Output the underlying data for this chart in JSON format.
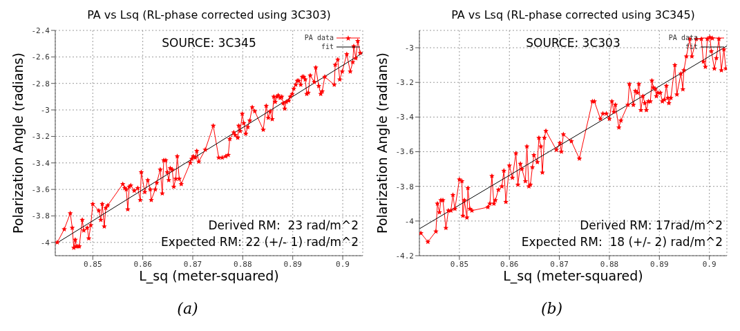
{
  "chart_data": [
    {
      "type": "line",
      "title": "PA vs Lsq (RL-phase corrected using 3C303)",
      "xlabel": "L_sq (meter-squared)",
      "ylabel": "Polarization Angle (radians)",
      "xlim": [
        0.8425,
        0.904
      ],
      "ylim": [
        -4.1,
        -2.4
      ],
      "xticks": [
        0.85,
        0.86,
        0.87,
        0.88,
        0.89,
        0.9
      ],
      "yticks": [
        -4,
        -3.8,
        -3.6,
        -3.4,
        -3.2,
        -3,
        -2.8,
        -2.6,
        -2.4
      ],
      "grid": true,
      "legend": "top right",
      "annotations": [
        "SOURCE: 3C345",
        "Derived RM:  23 rad/m^2",
        "Expected RM: 22 (+/- 1) rad/m^2",
        "(a)"
      ],
      "series": [
        {
          "name": "PA data",
          "color": "#ff0000",
          "marker": "star",
          "x": [
            0.8429,
            0.8443,
            0.8455,
            0.8459,
            0.8462,
            0.8465,
            0.8467,
            0.847,
            0.8473,
            0.8479,
            0.8482,
            0.8489,
            0.8492,
            0.8496,
            0.85,
            0.8512,
            0.8516,
            0.8519,
            0.8523,
            0.8526,
            0.853,
            0.856,
            0.8564,
            0.8567,
            0.857,
            0.8573,
            0.8576,
            0.8583,
            0.859,
            0.8595,
            0.8597,
            0.8604,
            0.861,
            0.8615,
            0.8617,
            0.8625,
            0.8628,
            0.8635,
            0.8639,
            0.8642,
            0.8646,
            0.8649,
            0.8652,
            0.8655,
            0.8659,
            0.8662,
            0.8666,
            0.8669,
            0.8673,
            0.8677,
            0.8695,
            0.8698,
            0.8701,
            0.8705,
            0.8708,
            0.8712,
            0.8725,
            0.8741,
            0.8752,
            0.8759,
            0.8766,
            0.8771,
            0.8774,
            0.8782,
            0.8785,
            0.879,
            0.8792,
            0.8795,
            0.8799,
            0.8802,
            0.8806,
            0.881,
            0.8814,
            0.8819,
            0.8824,
            0.8841,
            0.8847,
            0.8851,
            0.8855,
            0.8859,
            0.8862,
            0.8865,
            0.8868,
            0.8871,
            0.8875,
            0.8878,
            0.8881,
            0.8884,
            0.8887,
            0.8892,
            0.8895,
            0.8899,
            0.8902,
            0.8906,
            0.8909,
            0.8912,
            0.8916,
            0.8919,
            0.8922,
            0.8925,
            0.8928,
            0.8931,
            0.8935,
            0.8943,
            0.8946,
            0.8952,
            0.8956,
            0.8959,
            0.8964,
            0.8983,
            0.8985,
            0.899,
            0.8994,
            0.8999,
            0.9008,
            0.9015,
            0.902,
            0.9022,
            0.9026,
            0.903,
            0.9035
          ],
          "values": [
            -4.0,
            -3.9,
            -3.78,
            -3.89,
            -4.04,
            -3.98,
            -4.03,
            -4.03,
            -4.03,
            -3.83,
            -3.91,
            -3.89,
            -3.97,
            -3.87,
            -3.71,
            -3.76,
            -3.83,
            -3.71,
            -3.88,
            -3.74,
            -3.72,
            -3.56,
            -3.59,
            -3.6,
            -3.75,
            -3.58,
            -3.57,
            -3.61,
            -3.59,
            -3.68,
            -3.47,
            -3.62,
            -3.53,
            -3.6,
            -3.68,
            -3.6,
            -3.55,
            -3.45,
            -3.63,
            -3.38,
            -3.38,
            -3.47,
            -3.53,
            -3.44,
            -3.45,
            -3.58,
            -3.52,
            -3.35,
            -3.52,
            -3.56,
            -3.4,
            -3.37,
            -3.35,
            -3.36,
            -3.31,
            -3.39,
            -3.3,
            -3.12,
            -3.36,
            -3.36,
            -3.35,
            -3.34,
            -3.22,
            -3.17,
            -3.19,
            -3.21,
            -3.12,
            -3.16,
            -3.03,
            -3.1,
            -3.18,
            -3.13,
            -3.08,
            -2.98,
            -3.01,
            -3.15,
            -2.97,
            -3.06,
            -3.01,
            -3.07,
            -2.9,
            -2.94,
            -2.9,
            -2.89,
            -2.91,
            -2.9,
            -2.95,
            -2.99,
            -2.94,
            -2.93,
            -2.9,
            -2.88,
            -2.84,
            -2.81,
            -2.78,
            -2.78,
            -2.81,
            -2.75,
            -2.75,
            -2.77,
            -2.88,
            -2.87,
            -2.74,
            -2.79,
            -2.68,
            -2.82,
            -2.88,
            -2.86,
            -2.75,
            -2.81,
            -2.66,
            -2.62,
            -2.77,
            -2.71,
            -2.58,
            -2.71,
            -2.64,
            -2.52,
            -2.61,
            -2.48,
            -2.57
          ]
        },
        {
          "name": "fit",
          "type": "line",
          "color": "#000000",
          "marker": "none",
          "x": [
            0.8426,
            0.904
          ],
          "values": [
            -4.01,
            -2.57
          ]
        }
      ]
    },
    {
      "type": "line",
      "title": "PA vs Lsq (RL-phase corrected using 3C345)",
      "xlabel": "L_sq (meter-squared)",
      "ylabel": "Polarization Angle (radians)",
      "xlim": [
        0.842,
        0.9035
      ],
      "ylim": [
        -4.2,
        -2.9
      ],
      "xticks": [
        0.85,
        0.86,
        0.87,
        0.88,
        0.89,
        0.9
      ],
      "yticks": [
        -4.2,
        -4,
        -3.8,
        -3.6,
        -3.4,
        -3.2,
        -3
      ],
      "grid": true,
      "legend": "top right",
      "annotations": [
        "SOURCE: 3C303",
        "Derived RM: 17rad/m^2",
        "Expected RM:  18 (+/- 2) rad/m^2",
        "(b)"
      ],
      "series": [
        {
          "name": "PA data",
          "color": "#ff0000",
          "marker": "star",
          "x": [
            0.8423,
            0.8437,
            0.8453,
            0.8456,
            0.846,
            0.8463,
            0.8467,
            0.8473,
            0.8478,
            0.8483,
            0.8487,
            0.8491,
            0.85,
            0.8505,
            0.8507,
            0.851,
            0.8515,
            0.8517,
            0.8521,
            0.8525,
            0.8557,
            0.8561,
            0.8565,
            0.8569,
            0.8572,
            0.8578,
            0.8585,
            0.8589,
            0.8593,
            0.86,
            0.8606,
            0.8613,
            0.8617,
            0.8622,
            0.8625,
            0.8632,
            0.8635,
            0.8639,
            0.8642,
            0.8646,
            0.8649,
            0.8656,
            0.8659,
            0.8663,
            0.8666,
            0.867,
            0.8673,
            0.8694,
            0.8701,
            0.8704,
            0.8708,
            0.8724,
            0.874,
            0.8766,
            0.877,
            0.8782,
            0.8787,
            0.8794,
            0.88,
            0.8805,
            0.8809,
            0.8812,
            0.8819,
            0.8823,
            0.8837,
            0.884,
            0.8848,
            0.8852,
            0.8856,
            0.8859,
            0.8863,
            0.8867,
            0.8871,
            0.8874,
            0.8878,
            0.8882,
            0.8885,
            0.8888,
            0.8892,
            0.8894,
            0.8897,
            0.8902,
            0.8906,
            0.891,
            0.8914,
            0.8917,
            0.8919,
            0.8923,
            0.8931,
            0.8935,
            0.8943,
            0.8947,
            0.8949,
            0.8954,
            0.8961,
            0.8965,
            0.8974,
            0.8984,
            0.8988,
            0.8992,
            0.8996,
            0.9001,
            0.9004,
            0.901,
            0.9014,
            0.9019,
            0.9024,
            0.9029,
            0.9033
          ],
          "values": [
            -4.07,
            -4.12,
            -4.06,
            -3.9,
            -3.95,
            -3.88,
            -3.88,
            -4.04,
            -3.94,
            -3.94,
            -3.85,
            -3.93,
            -3.76,
            -3.77,
            -3.97,
            -3.88,
            -3.98,
            -3.81,
            -3.93,
            -3.94,
            -3.92,
            -3.9,
            -3.74,
            -3.9,
            -3.88,
            -3.82,
            -3.8,
            -3.71,
            -3.89,
            -3.68,
            -3.75,
            -3.61,
            -3.79,
            -3.67,
            -3.7,
            -3.77,
            -3.57,
            -3.8,
            -3.79,
            -3.69,
            -3.62,
            -3.66,
            -3.52,
            -3.57,
            -3.72,
            -3.52,
            -3.48,
            -3.59,
            -3.55,
            -3.6,
            -3.5,
            -3.54,
            -3.64,
            -3.31,
            -3.31,
            -3.41,
            -3.38,
            -3.38,
            -3.41,
            -3.31,
            -3.37,
            -3.33,
            -3.46,
            -3.42,
            -3.33,
            -3.21,
            -3.33,
            -3.25,
            -3.26,
            -3.21,
            -3.36,
            -3.28,
            -3.32,
            -3.36,
            -3.31,
            -3.31,
            -3.19,
            -3.23,
            -3.24,
            -3.28,
            -3.26,
            -3.26,
            -3.31,
            -3.3,
            -3.22,
            -3.29,
            -3.32,
            -3.29,
            -3.1,
            -3.27,
            -3.15,
            -3.24,
            -3.13,
            -3.05,
            -2.95,
            -3.05,
            -2.95,
            -2.95,
            -3.08,
            -3.11,
            -2.95,
            -2.94,
            -3.02,
            -3.12,
            -3.06,
            -2.95,
            -3.13,
            -3.01,
            -3.12
          ]
        },
        {
          "name": "fit",
          "type": "line",
          "color": "#000000",
          "marker": "none",
          "x": [
            0.842,
            0.9035
          ],
          "values": [
            -4.045,
            -2.99
          ]
        }
      ]
    }
  ]
}
